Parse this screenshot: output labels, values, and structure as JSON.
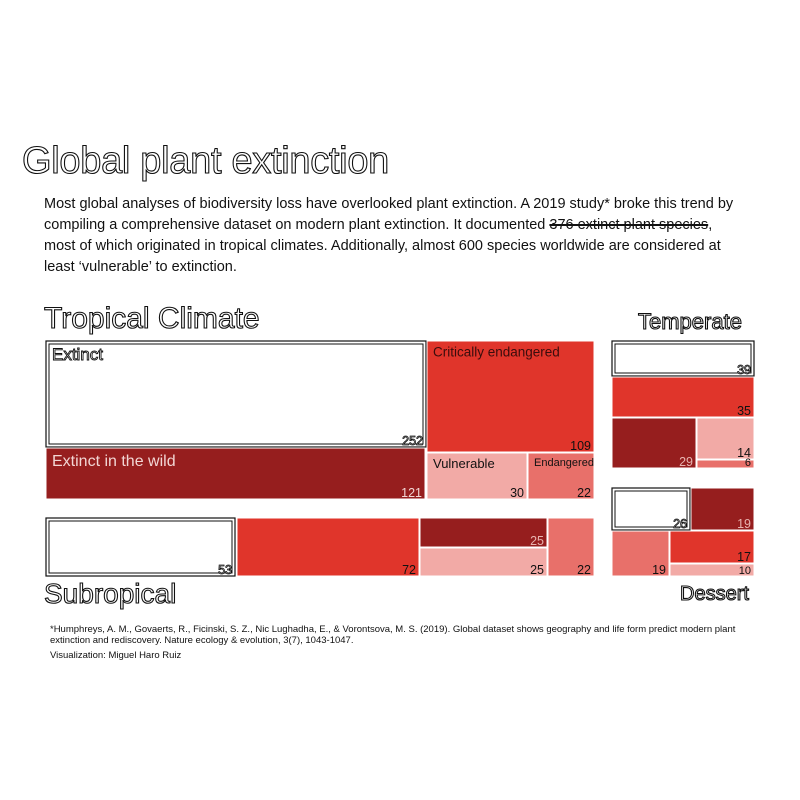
{
  "title": "Global plant extinction",
  "intro": {
    "part1": "Most global analyses of biodiversity loss have overlooked plant extinction. A 2019 study* broke this trend by compiling a comprehensive dataset on modern plant extinction. It documented ",
    "highlight": "376 extinct plant species",
    "part2": ", most of which originated in tropical climates. Additionally, almost 600 species worldwide are considered at least ‘vulnerable’ to extinction."
  },
  "colors": {
    "Extinct": "#ffffff",
    "Extinct in the wild": "#961e1e",
    "Critically endangered": "#e0352b",
    "Endangered": "#e8706a",
    "Vulnerable": "#f2aaa6"
  },
  "chart_data": {
    "type": "treemap",
    "regions": [
      {
        "name": "Tropical Climate",
        "cells": [
          {
            "category": "Extinct",
            "value": 252,
            "label": "Extinct"
          },
          {
            "category": "Critically endangered",
            "value": 109,
            "label": "Critically endangered"
          },
          {
            "category": "Extinct in the wild",
            "value": 121,
            "label": "Extinct in the wild"
          },
          {
            "category": "Vulnerable",
            "value": 30,
            "label": "Vulnerable"
          },
          {
            "category": "Endangered",
            "value": 22,
            "label": "Endangered"
          }
        ]
      },
      {
        "name": "Temperate",
        "cells": [
          {
            "category": "Extinct",
            "value": 39
          },
          {
            "category": "Critically endangered",
            "value": 35
          },
          {
            "category": "Extinct in the wild",
            "value": 29
          },
          {
            "category": "Vulnerable",
            "value": 14
          },
          {
            "category": "Endangered",
            "value": 6
          }
        ]
      },
      {
        "name": "Subropical",
        "cells": [
          {
            "category": "Extinct",
            "value": 53
          },
          {
            "category": "Critically endangered",
            "value": 72
          },
          {
            "category": "Extinct in the wild",
            "value": 25
          },
          {
            "category": "Vulnerable",
            "value": 25
          },
          {
            "category": "Endangered",
            "value": 22
          }
        ]
      },
      {
        "name": "Dessert",
        "cells": [
          {
            "category": "Extinct",
            "value": 26
          },
          {
            "category": "Extinct in the wild",
            "value": 19
          },
          {
            "category": "Endangered",
            "value": 19
          },
          {
            "category": "Critically endangered",
            "value": 17
          },
          {
            "category": "Vulnerable",
            "value": 10
          }
        ]
      }
    ]
  },
  "citation": "*Humphreys, A. M., Govaerts, R., Ficinski, S. Z., Nic Lughadha, E., & Vorontsova, M. S. (2019). Global dataset shows geography and life form predict modern plant extinction and rediscovery. Nature ecology & evolution, 3(7), 1043-1047.",
  "credit": "Visualization: Miguel Haro Ruiz"
}
